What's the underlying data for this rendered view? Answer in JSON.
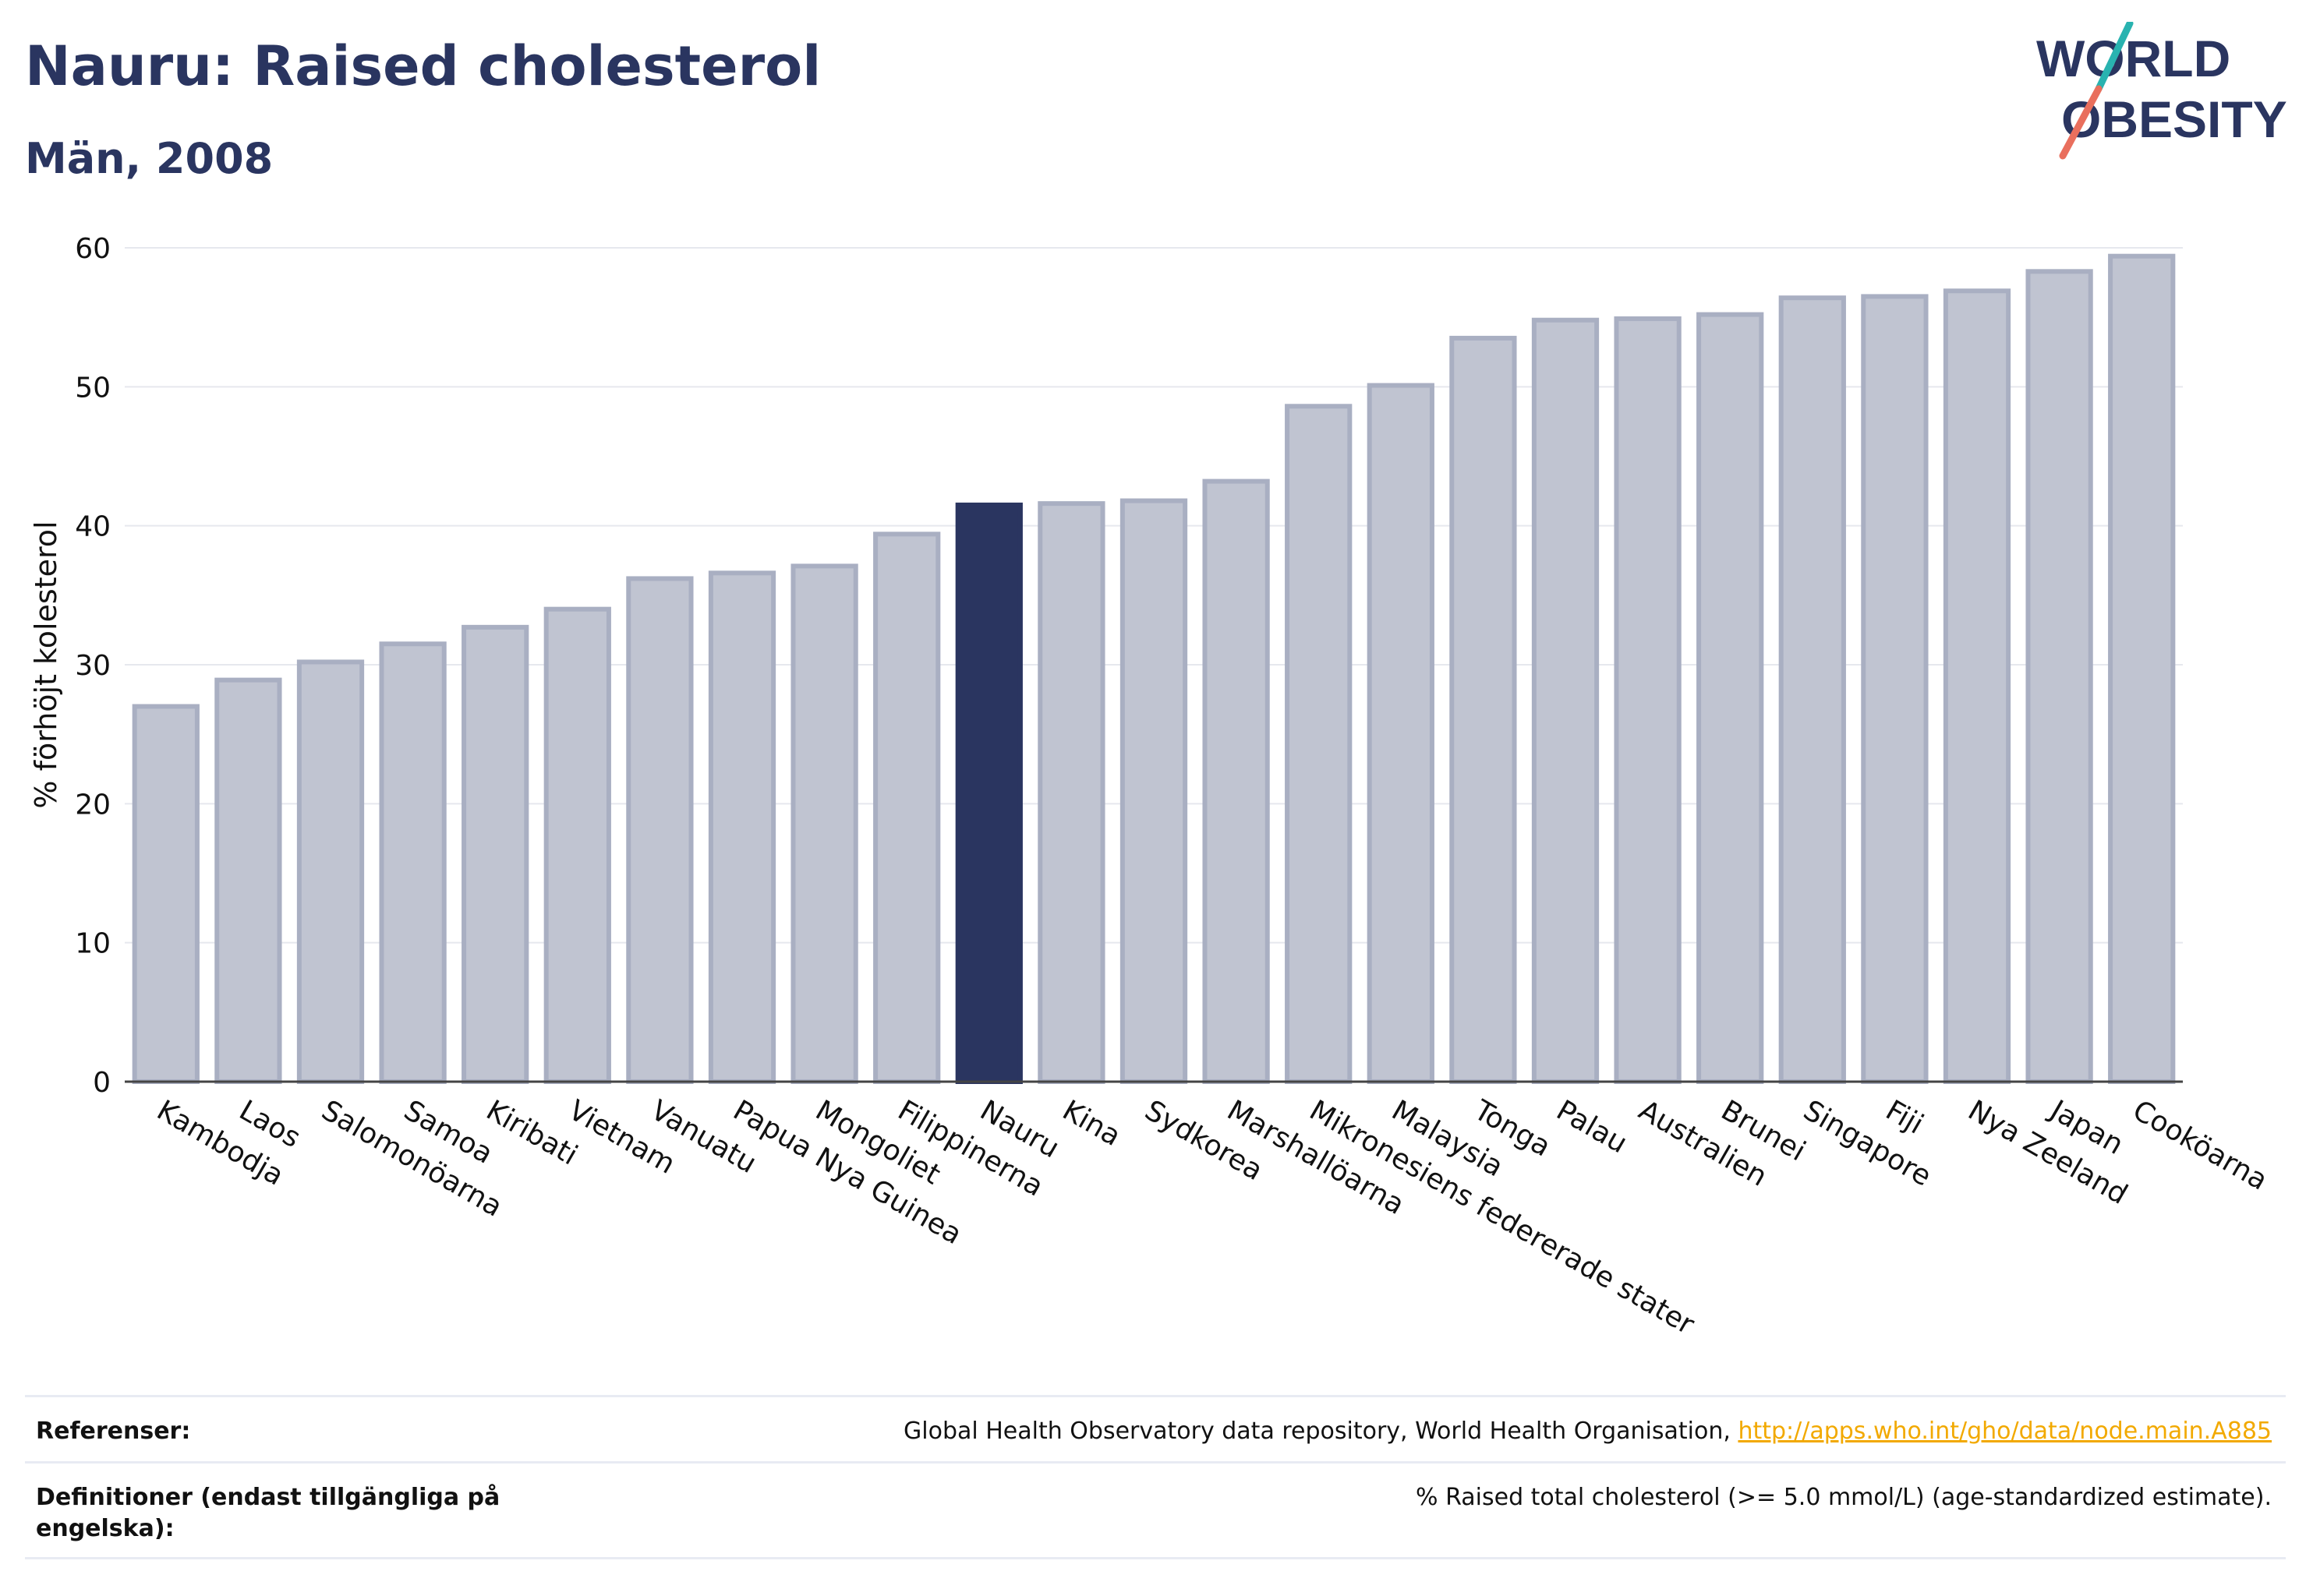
{
  "header": {
    "title": "Nauru: Raised cholesterol",
    "subtitle": "Män, 2008"
  },
  "logo": {
    "line1": "WORLD",
    "line2": "OBESITY"
  },
  "colors": {
    "highlight": "#2a3560",
    "bar_fill": "#c0c4d1",
    "bar_stroke": "#a9afc2",
    "text": "#2a3560",
    "logo_teal": "#29b3b0",
    "logo_coral": "#e96f5d",
    "link": "#f2a900"
  },
  "chart_data": {
    "type": "bar",
    "title": "Nauru: Raised cholesterol",
    "subtitle": "Män, 2008",
    "xlabel": "",
    "ylabel": "% förhöjt kolesterol",
    "ylim": [
      0,
      60
    ],
    "yticks": [
      0,
      10,
      20,
      30,
      40,
      50,
      60
    ],
    "grid": true,
    "highlight": "Nauru",
    "categories": [
      "Kambodja",
      "Laos",
      "Salomonöarna",
      "Samoa",
      "Kiribati",
      "Vietnam",
      "Vanuatu",
      "Papua Nya Guinea",
      "Mongoliet",
      "Filippinerna",
      "Nauru",
      "Kina",
      "Sydkorea",
      "Marshallöarna",
      "Mikronesiens federerade stater",
      "Malaysia",
      "Tonga",
      "Palau",
      "Australien",
      "Brunei",
      "Singapore",
      "Fiji",
      "Nya Zeeland",
      "Japan",
      "Cooköarna"
    ],
    "values": [
      27.0,
      28.9,
      30.2,
      31.5,
      32.7,
      34.0,
      36.2,
      36.6,
      37.1,
      39.4,
      41.5,
      41.6,
      41.8,
      43.2,
      48.6,
      50.1,
      53.5,
      54.8,
      54.9,
      55.2,
      56.4,
      56.5,
      56.9,
      58.3,
      59.4
    ]
  },
  "references": {
    "ref_label": "Referenser:",
    "ref_text": "Global Health Observatory data repository, World Health Organisation, ",
    "ref_link": "http://apps.who.int/gho/data/node.main.A885",
    "def_label": "Definitioner (endast tillgängliga på engelska):",
    "def_text": "% Raised total cholesterol (>= 5.0 mmol/L) (age-standardized estimate)."
  }
}
